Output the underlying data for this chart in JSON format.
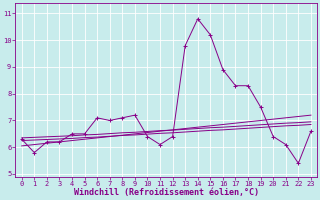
{
  "xlabel": "Windchill (Refroidissement éolien,°C)",
  "bg_color": "#c8ecec",
  "line_color": "#880088",
  "grid_color": "#ffffff",
  "x_values": [
    0,
    1,
    2,
    3,
    4,
    5,
    6,
    7,
    8,
    9,
    10,
    11,
    12,
    13,
    14,
    15,
    16,
    17,
    18,
    19,
    20,
    21,
    22,
    23
  ],
  "y_main": [
    6.3,
    5.8,
    6.2,
    6.2,
    6.5,
    6.5,
    7.1,
    7.0,
    7.1,
    7.2,
    6.4,
    6.1,
    6.4,
    9.8,
    10.8,
    10.2,
    8.9,
    8.3,
    8.3,
    7.5,
    6.4,
    6.1,
    5.4,
    6.6
  ],
  "y_trend1": [
    6.05,
    6.1,
    6.15,
    6.2,
    6.25,
    6.3,
    6.35,
    6.4,
    6.45,
    6.5,
    6.55,
    6.6,
    6.65,
    6.7,
    6.75,
    6.8,
    6.85,
    6.9,
    6.95,
    7.0,
    7.05,
    7.1,
    7.15,
    7.2
  ],
  "y_trend2": [
    6.25,
    6.27,
    6.29,
    6.31,
    6.33,
    6.36,
    6.38,
    6.41,
    6.44,
    6.46,
    6.49,
    6.52,
    6.54,
    6.57,
    6.6,
    6.63,
    6.65,
    6.68,
    6.71,
    6.74,
    6.77,
    6.8,
    6.82,
    6.85
  ],
  "y_trend3": [
    6.35,
    6.37,
    6.39,
    6.41,
    6.43,
    6.46,
    6.48,
    6.51,
    6.54,
    6.56,
    6.59,
    6.62,
    6.64,
    6.67,
    6.7,
    6.73,
    6.75,
    6.78,
    6.81,
    6.84,
    6.87,
    6.9,
    6.92,
    6.95
  ],
  "ylim": [
    4.9,
    11.4
  ],
  "xlim": [
    -0.5,
    23.5
  ],
  "yticks": [
    5,
    6,
    7,
    8,
    9,
    10,
    11
  ],
  "xticks": [
    0,
    1,
    2,
    3,
    4,
    5,
    6,
    7,
    8,
    9,
    10,
    11,
    12,
    13,
    14,
    15,
    16,
    17,
    18,
    19,
    20,
    21,
    22,
    23
  ],
  "tick_label_size": 5.0,
  "xlabel_size": 6.0,
  "marker": "+",
  "marker_size": 3.0,
  "lw_main": 0.7,
  "lw_trend": 0.7
}
